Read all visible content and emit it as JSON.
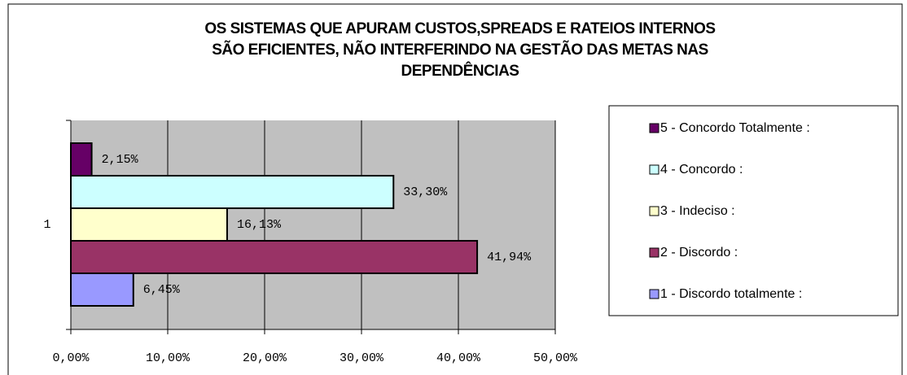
{
  "chart_data": {
    "type": "bar",
    "orientation": "horizontal",
    "title": [
      "OS SISTEMAS QUE APURAM CUSTOS,SPREADS E RATEIOS INTERNOS",
      "SÃO EFICIENTES, NÃO INTERFERINDO NA GESTÃO DAS METAS NAS",
      "DEPENDÊNCIAS"
    ],
    "categories": [
      "1"
    ],
    "series": [
      {
        "name": "5 - Concordo Totalmente :",
        "color": "#660066",
        "values": [
          2.15
        ],
        "value_labels": [
          "2,15%"
        ]
      },
      {
        "name": "4 - Concordo :",
        "color": "#ccffff",
        "values": [
          33.3
        ],
        "value_labels": [
          "33,30%"
        ]
      },
      {
        "name": "3 - Indeciso :",
        "color": "#ffffcc",
        "values": [
          16.13
        ],
        "value_labels": [
          "16,13%"
        ]
      },
      {
        "name": "2 - Discordo :",
        "color": "#993366",
        "values": [
          41.94
        ],
        "value_labels": [
          "41,94%"
        ]
      },
      {
        "name": "1 - Discordo totalmente :",
        "color": "#9999ff",
        "values": [
          6.45
        ],
        "value_labels": [
          "6,45%"
        ]
      }
    ],
    "xlim": [
      0,
      50
    ],
    "xticks": [
      {
        "value": 0,
        "label": "0,00%"
      },
      {
        "value": 10,
        "label": "10,00%"
      },
      {
        "value": 20,
        "label": "20,00%"
      },
      {
        "value": 30,
        "label": "30,00%"
      },
      {
        "value": 40,
        "label": "40,00%"
      },
      {
        "value": 50,
        "label": "50,00%"
      }
    ],
    "grid": true,
    "legend": "right"
  }
}
